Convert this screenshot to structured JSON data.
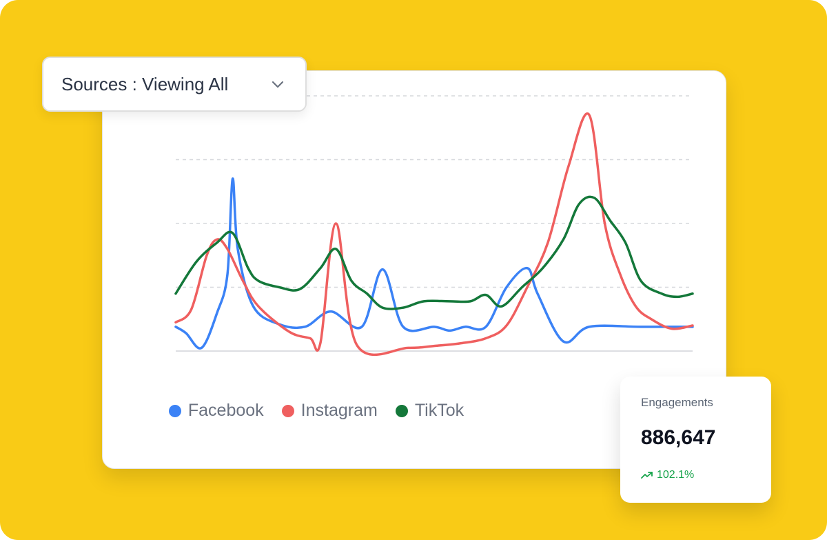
{
  "filter": {
    "label": "Sources : Viewing All"
  },
  "legend": [
    {
      "name": "Facebook",
      "color": "#3b82f6"
    },
    {
      "name": "Instagram",
      "color": "#ef5f5f"
    },
    {
      "name": "TikTok",
      "color": "#14783a"
    }
  ],
  "stat": {
    "title": "Engagements",
    "value": "886,647",
    "change": "102.1%",
    "change_icon": "trending-up-icon",
    "change_color": "#16a34a"
  },
  "chart_data": {
    "type": "line",
    "title": "",
    "xlabel": "",
    "ylabel": "",
    "ylim": [
      0,
      400
    ],
    "xlim": [
      0,
      100
    ],
    "grid": true,
    "legend_position": "bottom",
    "series": [
      {
        "name": "Facebook",
        "color": "#3b82f6",
        "points": [
          [
            0,
            38
          ],
          [
            2,
            28
          ],
          [
            5,
            5
          ],
          [
            8,
            60
          ],
          [
            10,
            120
          ],
          [
            11,
            270
          ],
          [
            12,
            160
          ],
          [
            15,
            70
          ],
          [
            20,
            42
          ],
          [
            25,
            38
          ],
          [
            30,
            62
          ],
          [
            36,
            38
          ],
          [
            40,
            128
          ],
          [
            44,
            38
          ],
          [
            50,
            38
          ],
          [
            53,
            32
          ],
          [
            56,
            38
          ],
          [
            60,
            38
          ],
          [
            64,
            100
          ],
          [
            68,
            130
          ],
          [
            70,
            90
          ],
          [
            75,
            15
          ],
          [
            80,
            38
          ],
          [
            90,
            38
          ],
          [
            100,
            38
          ]
        ]
      },
      {
        "name": "Instagram",
        "color": "#ef5f5f",
        "points": [
          [
            0,
            45
          ],
          [
            3,
            65
          ],
          [
            6,
            150
          ],
          [
            8,
            175
          ],
          [
            10,
            160
          ],
          [
            13,
            110
          ],
          [
            16,
            70
          ],
          [
            22,
            30
          ],
          [
            26,
            20
          ],
          [
            28,
            13
          ],
          [
            31,
            200
          ],
          [
            35,
            10
          ],
          [
            45,
            5
          ],
          [
            50,
            8
          ],
          [
            55,
            12
          ],
          [
            60,
            20
          ],
          [
            64,
            40
          ],
          [
            68,
            100
          ],
          [
            72,
            170
          ],
          [
            76,
            290
          ],
          [
            80,
            370
          ],
          [
            83,
            200
          ],
          [
            86,
            120
          ],
          [
            89,
            70
          ],
          [
            92,
            50
          ],
          [
            96,
            35
          ],
          [
            100,
            40
          ]
        ]
      },
      {
        "name": "TikTok",
        "color": "#14783a",
        "points": [
          [
            0,
            90
          ],
          [
            4,
            140
          ],
          [
            8,
            170
          ],
          [
            11,
            185
          ],
          [
            14,
            130
          ],
          [
            16,
            110
          ],
          [
            20,
            100
          ],
          [
            24,
            97
          ],
          [
            28,
            130
          ],
          [
            31,
            160
          ],
          [
            34,
            110
          ],
          [
            37,
            90
          ],
          [
            40,
            68
          ],
          [
            44,
            68
          ],
          [
            48,
            78
          ],
          [
            53,
            78
          ],
          [
            57,
            78
          ],
          [
            60,
            88
          ],
          [
            63,
            70
          ],
          [
            67,
            100
          ],
          [
            71,
            130
          ],
          [
            75,
            175
          ],
          [
            78,
            230
          ],
          [
            81,
            240
          ],
          [
            84,
            205
          ],
          [
            87,
            170
          ],
          [
            90,
            110
          ],
          [
            94,
            90
          ],
          [
            97,
            85
          ],
          [
            100,
            90
          ]
        ]
      }
    ]
  }
}
